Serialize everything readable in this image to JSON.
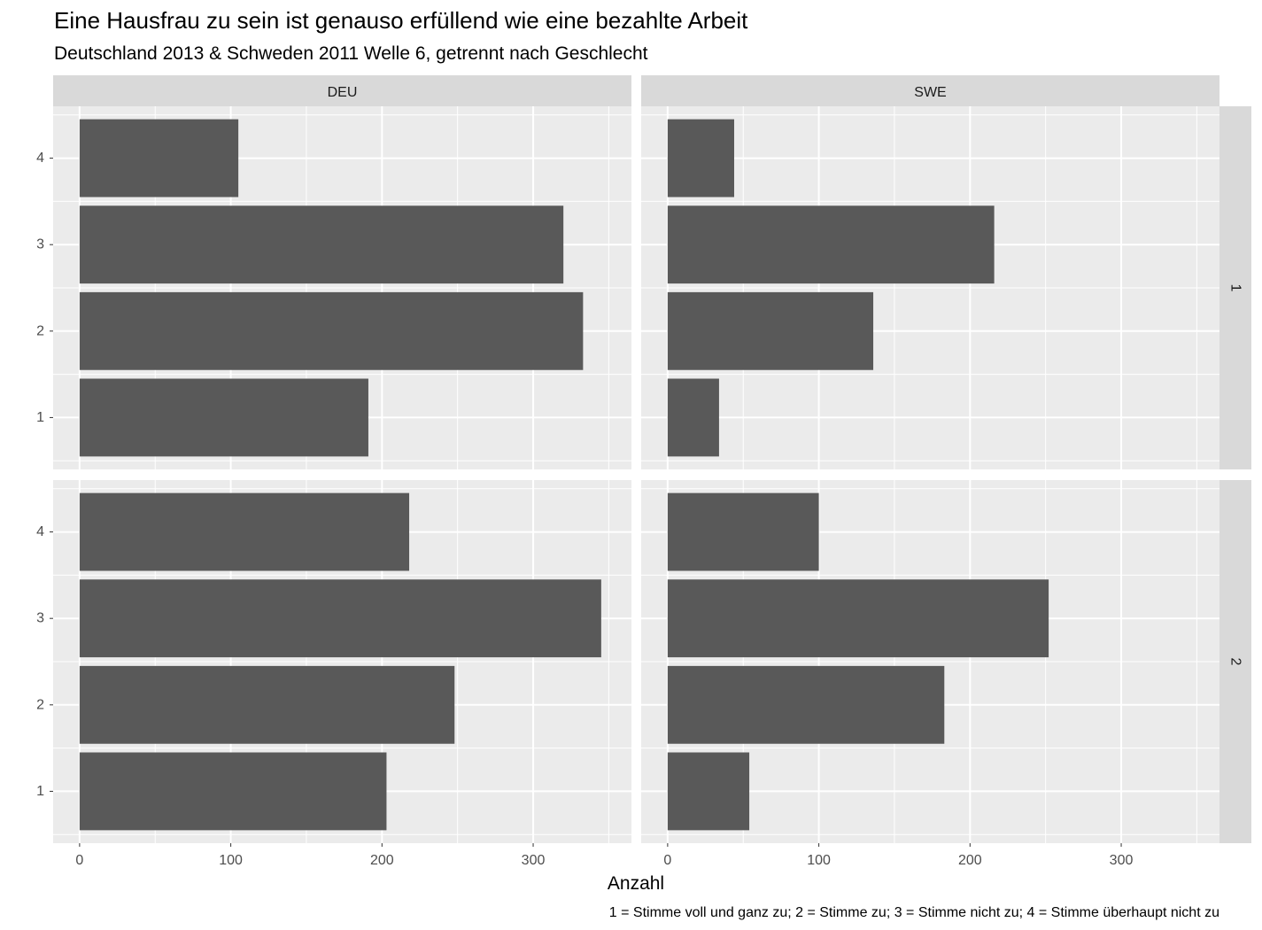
{
  "chart_data": {
    "type": "bar",
    "orientation": "horizontal",
    "title": "Eine Hausfrau zu sein ist genauso erfüllend wie eine bezahlte Arbeit",
    "subtitle": "Deutschland 2013 & Schweden 2011 Welle 6, getrennt nach Geschlecht",
    "xlabel": "Anzahl",
    "ylabel": "",
    "caption": "1 = Stimme voll und ganz zu; 2 = Stimme zu; 3 = Stimme nicht zu; 4 = Stimme überhaupt nicht zu",
    "xlim": [
      -17.5,
      365
    ],
    "x_ticks": [
      0,
      100,
      200,
      300
    ],
    "x_tick_labels": [
      "0",
      "100",
      "200",
      "300"
    ],
    "categories": [
      "1",
      "2",
      "3",
      "4"
    ],
    "facet_cols": [
      "DEU",
      "SWE"
    ],
    "facet_rows": [
      "1",
      "2"
    ],
    "colors": {
      "bar": "#595959",
      "panel_bg": "#ebebeb",
      "grid": "#ffffff",
      "strip_bg": "#d9d9d9",
      "strip_text": "#1a1a1a",
      "tick_text": "#4d4d4d",
      "tick_mark": "#333333"
    },
    "panels": [
      {
        "col": "DEU",
        "row": "1",
        "values": [
          191,
          333,
          320,
          105
        ]
      },
      {
        "col": "SWE",
        "row": "1",
        "values": [
          34,
          136,
          216,
          44
        ]
      },
      {
        "col": "DEU",
        "row": "2",
        "values": [
          203,
          248,
          345,
          218
        ]
      },
      {
        "col": "SWE",
        "row": "2",
        "values": [
          54,
          183,
          252,
          100
        ]
      }
    ]
  }
}
